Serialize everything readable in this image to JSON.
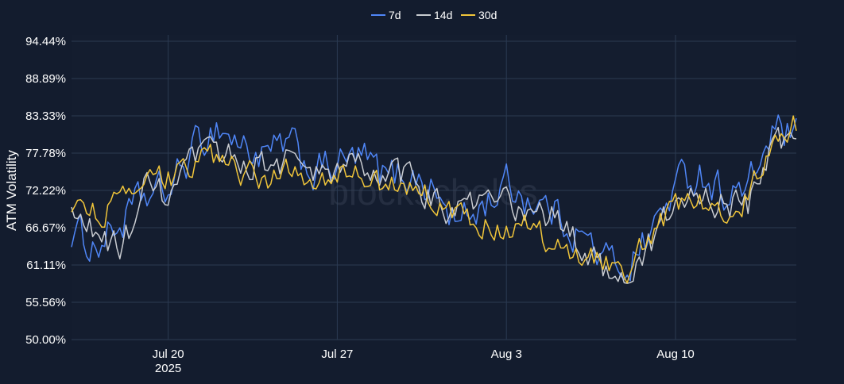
{
  "chart_data": {
    "type": "line",
    "ylabel": "ATM Volatility",
    "y_ticks": [
      "50.00%",
      "55.56%",
      "61.11%",
      "66.67%",
      "72.22%",
      "77.78%",
      "83.33%",
      "88.89%",
      "94.44%"
    ],
    "ylim": [
      50.0,
      94.44
    ],
    "x_range": [
      "2025-07-16",
      "2025-08-15"
    ],
    "x_ticks": [
      {
        "date": "2025-07-20",
        "label": "Jul 20",
        "sublabel": "2025"
      },
      {
        "date": "2025-07-27",
        "label": "Jul 27",
        "sublabel": ""
      },
      {
        "date": "2025-08-03",
        "label": "Aug 3",
        "sublabel": ""
      },
      {
        "date": "2025-08-10",
        "label": "Aug 10",
        "sublabel": ""
      }
    ],
    "grid": true,
    "legend_position": "top-center",
    "watermark": "blockscholes",
    "series": [
      {
        "name": "7d",
        "color": "#4f86f7",
        "x": [
          "2025-07-16",
          "2025-07-17",
          "2025-07-18",
          "2025-07-19",
          "2025-07-20",
          "2025-07-21",
          "2025-07-22",
          "2025-07-23",
          "2025-07-24",
          "2025-07-25",
          "2025-07-26",
          "2025-07-27",
          "2025-07-28",
          "2025-07-29",
          "2025-07-30",
          "2025-07-31",
          "2025-08-01",
          "2025-08-02",
          "2025-08-03",
          "2025-08-04",
          "2025-08-05",
          "2025-08-06",
          "2025-08-07",
          "2025-08-08",
          "2025-08-09",
          "2025-08-10",
          "2025-08-11",
          "2025-08-12",
          "2025-08-13",
          "2025-08-14",
          "2025-08-15"
        ],
        "values": [
          66,
          64,
          67,
          71,
          72,
          78,
          82,
          79,
          77,
          79,
          75,
          76,
          77,
          74,
          75,
          72,
          67,
          70,
          73,
          71,
          69,
          66,
          62,
          61,
          66,
          73,
          75,
          72,
          72,
          81,
          80
        ]
      },
      {
        "name": "14d",
        "color": "#c9ccd1",
        "x": [
          "2025-07-16",
          "2025-07-17",
          "2025-07-18",
          "2025-07-19",
          "2025-07-20",
          "2025-07-21",
          "2025-07-22",
          "2025-07-23",
          "2025-07-24",
          "2025-07-25",
          "2025-07-26",
          "2025-07-27",
          "2025-07-28",
          "2025-07-29",
          "2025-07-30",
          "2025-07-31",
          "2025-08-01",
          "2025-08-02",
          "2025-08-03",
          "2025-08-04",
          "2025-08-05",
          "2025-08-06",
          "2025-08-07",
          "2025-08-08",
          "2025-08-09",
          "2025-08-10",
          "2025-08-11",
          "2025-08-12",
          "2025-08-13",
          "2025-08-14",
          "2025-08-15"
        ],
        "values": [
          68,
          66,
          63,
          72,
          71,
          76,
          78,
          77,
          76,
          77,
          74,
          75,
          76,
          74,
          74,
          71,
          69,
          70,
          70,
          69,
          68,
          64,
          61,
          60,
          64,
          70,
          72,
          70,
          70,
          79,
          80
        ]
      },
      {
        "name": "30d",
        "color": "#f0c53a",
        "x": [
          "2025-07-16",
          "2025-07-17",
          "2025-07-18",
          "2025-07-19",
          "2025-07-20",
          "2025-07-21",
          "2025-07-22",
          "2025-07-23",
          "2025-07-24",
          "2025-07-25",
          "2025-07-26",
          "2025-07-27",
          "2025-07-28",
          "2025-07-29",
          "2025-07-30",
          "2025-07-31",
          "2025-08-01",
          "2025-08-02",
          "2025-08-03",
          "2025-08-04",
          "2025-08-05",
          "2025-08-06",
          "2025-08-07",
          "2025-08-08",
          "2025-08-09",
          "2025-08-10",
          "2025-08-11",
          "2025-08-12",
          "2025-08-13",
          "2025-08-14",
          "2025-08-15"
        ],
        "values": [
          70,
          69,
          70,
          73,
          74,
          76,
          77,
          75,
          74,
          75,
          74,
          75,
          74,
          73,
          73,
          71,
          68,
          67,
          67,
          67,
          64,
          63,
          62,
          61,
          65,
          70,
          71,
          70,
          71,
          79,
          82
        ]
      }
    ]
  }
}
